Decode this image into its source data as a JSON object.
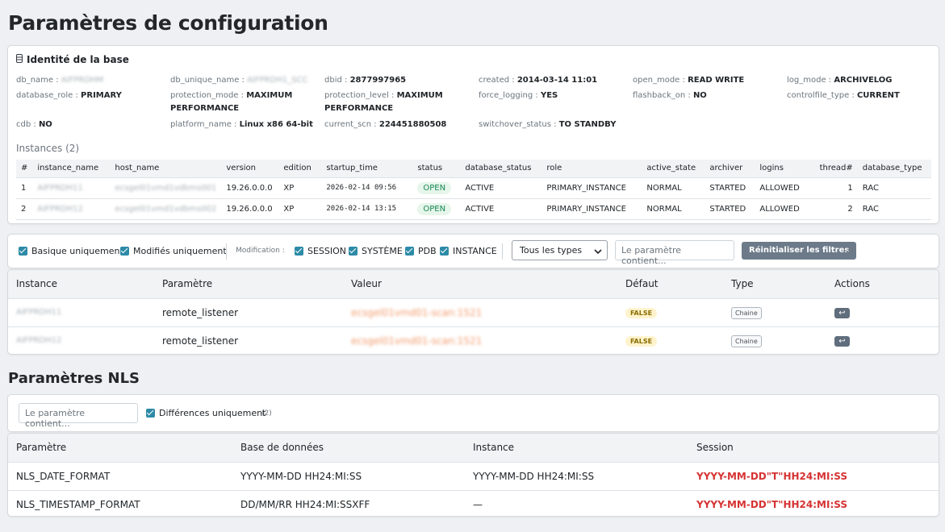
{
  "page_title": "Paramètres de configuration",
  "identity": {
    "title": "Identité de la base",
    "icon": "database-icon",
    "fields": [
      {
        "k": "db_name",
        "v": "AIFPRDHM",
        "blur": true
      },
      {
        "k": "db_unique_name",
        "v": "AIFPRDH1_SCC",
        "blur": true
      },
      {
        "k": "dbid",
        "v": "2877997965"
      },
      {
        "k": "created",
        "v": "2014-03-14 11:01"
      },
      {
        "k": "open_mode",
        "v": "READ WRITE"
      },
      {
        "k": "log_mode",
        "v": "ARCHIVELOG"
      },
      {
        "k": "database_role",
        "v": "PRIMARY"
      },
      {
        "k": "protection_mode",
        "v": "MAXIMUM PERFORMANCE"
      },
      {
        "k": "protection_level",
        "v": "MAXIMUM PERFORMANCE"
      },
      {
        "k": "force_logging",
        "v": "YES"
      },
      {
        "k": "flashback_on",
        "v": "NO"
      },
      {
        "k": "controlfile_type",
        "v": "CURRENT"
      },
      {
        "k": "cdb",
        "v": "NO"
      },
      {
        "k": "platform_name",
        "v": "Linux x86 64-bit"
      },
      {
        "k": "current_scn",
        "v": "224451880508"
      },
      {
        "k": "switchover_status",
        "v": "TO STANDBY"
      }
    ]
  },
  "instances": {
    "title": "Instances (2)",
    "columns": [
      "#",
      "instance_name",
      "host_name",
      "version",
      "edition",
      "startup_time",
      "status",
      "database_status",
      "role",
      "active_state",
      "archiver",
      "logins",
      "thread#",
      "database_type"
    ],
    "rows": [
      {
        "n": "1",
        "instance_name": "AIFPRDH11",
        "host_name": "ecsgel01vmd1vdbms001",
        "version": "19.26.0.0.0",
        "edition": "XP",
        "startup_time": "2026-02-14 09:56",
        "status": "OPEN",
        "database_status": "ACTIVE",
        "role": "PRIMARY_INSTANCE",
        "active_state": "NORMAL",
        "archiver": "STARTED",
        "logins": "ALLOWED",
        "thread": "1",
        "database_type": "RAC"
      },
      {
        "n": "2",
        "instance_name": "AIFPRDH12",
        "host_name": "ecsgel01vmd1vdbms002",
        "version": "19.26.0.0.0",
        "edition": "XP",
        "startup_time": "2026-02-14 13:15",
        "status": "OPEN",
        "database_status": "ACTIVE",
        "role": "PRIMARY_INSTANCE",
        "active_state": "NORMAL",
        "archiver": "STARTED",
        "logins": "ALLOWED",
        "thread": "2",
        "database_type": "RAC"
      }
    ]
  },
  "filters": {
    "basic_only": "Basique uniquement",
    "modified_only": "Modifiés uniquement",
    "modification_label": "Modification :",
    "mod_session": "SESSION",
    "mod_system": "SYSTÈME",
    "mod_pdb": "PDB",
    "mod_instance": "INSTANCE",
    "type_select": "Tous les types",
    "search_placeholder": "Le paramètre contient...",
    "reset_button": "Réinitialiser les filtres",
    "count": "(2)"
  },
  "params": {
    "columns": [
      "Instance",
      "Paramètre",
      "Valeur",
      "Défaut",
      "Type",
      "Actions"
    ],
    "rows": [
      {
        "instance": "AIFPRDH11",
        "param": "remote_listener",
        "value": "ecsgel01vmd01-scan:1521",
        "default": "FALSE",
        "type": "Chaine"
      },
      {
        "instance": "AIFPRDH12",
        "param": "remote_listener",
        "value": "ecsgel01vmd01-scan:1521",
        "default": "FALSE",
        "type": "Chaine"
      }
    ]
  },
  "nls": {
    "title": "Paramètres NLS",
    "search_placeholder": "Le paramètre contient...",
    "diff_only": "Différences uniquement",
    "count": "(2)",
    "columns": [
      "Paramètre",
      "Base de données",
      "Instance",
      "Session"
    ],
    "rows": [
      {
        "param": "NLS_DATE_FORMAT",
        "db": "YYYY-MM-DD HH24:MI:SS",
        "inst": "YYYY-MM-DD HH24:MI:SS",
        "session": "YYYY-MM-DD\"T\"HH24:MI:SS"
      },
      {
        "param": "NLS_TIMESTAMP_FORMAT",
        "db": "DD/MM/RR HH24:MI:SSXFF",
        "inst": "—",
        "session": "YYYY-MM-DD\"T\"HH24:MI:SS"
      }
    ]
  },
  "colors": {
    "accent": "#2d8ba7",
    "open": "#198754",
    "diff": "#d63333"
  }
}
